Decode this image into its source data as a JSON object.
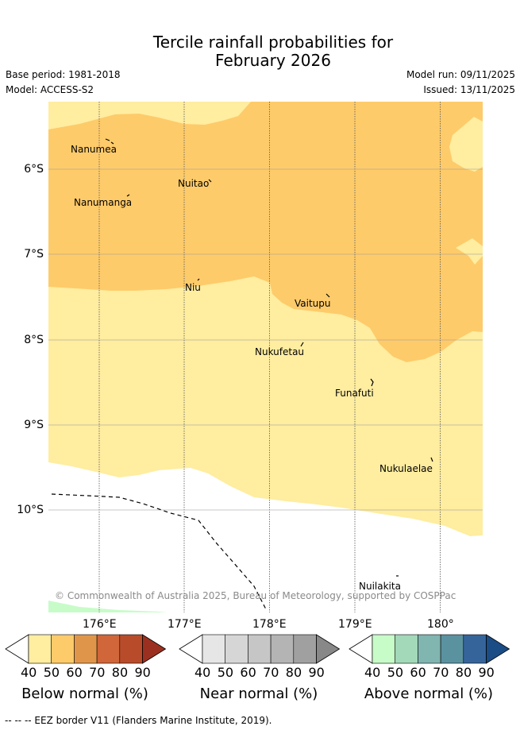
{
  "title": {
    "line1": "Tercile rainfall probabilities for",
    "line2": "February 2026"
  },
  "meta": {
    "base_period": "Base period: 1981-2018",
    "model": "Model: ACCESS-S2",
    "model_run": "Model run: 09/11/2025",
    "issued": "Issued: 13/11/2025"
  },
  "map": {
    "longitudes": [
      "176°E",
      "177°E",
      "178°E",
      "179°E",
      "180°"
    ],
    "latitudes": [
      "6°S",
      "7°S",
      "8°S",
      "9°S",
      "10°S"
    ],
    "places": [
      {
        "name": "Nanumea"
      },
      {
        "name": "Nuitao"
      },
      {
        "name": "Nanumanga"
      },
      {
        "name": "Niu"
      },
      {
        "name": "Vaitupu"
      },
      {
        "name": "Nukufetau"
      },
      {
        "name": "Funafuti"
      },
      {
        "name": "Nukulaelae"
      },
      {
        "name": "Nuilakita"
      }
    ],
    "copyright": "© Commonwealth of Australia 2025, Bureau of Meteorology, supported by COSPPac",
    "region_colors": {
      "below_40_50": "#ffeda0",
      "below_50_60": "#fecb6a",
      "above_40_50": "#c7fcc9"
    }
  },
  "colorbars": [
    {
      "label": "Below normal (%)",
      "ticks": [
        "40",
        "50",
        "60",
        "70",
        "80",
        "90"
      ],
      "colors": [
        "#ffeda0",
        "#fecb6a",
        "#e0964a",
        "#d0663a",
        "#b84c2a",
        "#9c3020"
      ]
    },
    {
      "label": "Near normal (%)",
      "ticks": [
        "40",
        "50",
        "60",
        "70",
        "80",
        "90"
      ],
      "colors": [
        "#e6e6e6",
        "#d6d6d6",
        "#c6c6c6",
        "#b4b4b4",
        "#a0a0a0",
        "#888888"
      ]
    },
    {
      "label": "Above normal (%)",
      "ticks": [
        "40",
        "50",
        "60",
        "70",
        "80",
        "90"
      ],
      "colors": [
        "#c7fcc9",
        "#a3d8b9",
        "#80b5b0",
        "#5a92a0",
        "#35649b",
        "#1a4c85"
      ]
    }
  ],
  "footer": "--  --  -- EEZ border V11 (Flanders Marine Institute, 2019)."
}
